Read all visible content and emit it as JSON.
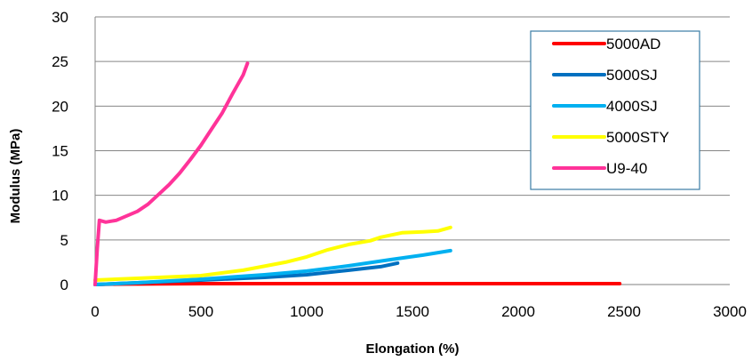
{
  "chart_data": {
    "type": "line",
    "title": "",
    "xlabel": "Elongation (%)",
    "ylabel": "Modulus (MPa)",
    "xlim": [
      0,
      3000
    ],
    "ylim": [
      0,
      30
    ],
    "xticks": [
      0,
      500,
      1000,
      1500,
      2000,
      2500,
      3000
    ],
    "yticks": [
      0,
      5,
      10,
      15,
      20,
      25,
      30
    ],
    "grid": "horizontal",
    "legend_position": "top-right",
    "series": [
      {
        "name": "5000AD",
        "color": "#ff0000",
        "points": [
          [
            0,
            0
          ],
          [
            100,
            0.05
          ],
          [
            500,
            0.1
          ],
          [
            1000,
            0.1
          ],
          [
            1500,
            0.1
          ],
          [
            2000,
            0.1
          ],
          [
            2480,
            0.1
          ]
        ]
      },
      {
        "name": "5000SJ",
        "color": "#0070c0",
        "points": [
          [
            0,
            0
          ],
          [
            200,
            0.2
          ],
          [
            500,
            0.5
          ],
          [
            800,
            0.8
          ],
          [
            1000,
            1.1
          ],
          [
            1200,
            1.6
          ],
          [
            1350,
            2.0
          ],
          [
            1430,
            2.4
          ]
        ]
      },
      {
        "name": "4000SJ",
        "color": "#00b0f0",
        "points": [
          [
            0,
            0
          ],
          [
            200,
            0.2
          ],
          [
            500,
            0.6
          ],
          [
            800,
            1.1
          ],
          [
            1000,
            1.5
          ],
          [
            1200,
            2.1
          ],
          [
            1400,
            2.8
          ],
          [
            1550,
            3.3
          ],
          [
            1680,
            3.8
          ]
        ]
      },
      {
        "name": "5000STY",
        "color": "#ffff00",
        "points": [
          [
            0,
            0.5
          ],
          [
            200,
            0.7
          ],
          [
            500,
            1.0
          ],
          [
            700,
            1.6
          ],
          [
            900,
            2.5
          ],
          [
            1000,
            3.1
          ],
          [
            1100,
            3.9
          ],
          [
            1200,
            4.5
          ],
          [
            1300,
            4.9
          ],
          [
            1350,
            5.3
          ],
          [
            1450,
            5.8
          ],
          [
            1550,
            5.9
          ],
          [
            1620,
            6.0
          ],
          [
            1680,
            6.4
          ]
        ]
      },
      {
        "name": "U9-40",
        "color": "#ff3399",
        "points": [
          [
            0,
            0
          ],
          [
            10,
            4
          ],
          [
            20,
            7.2
          ],
          [
            50,
            7.0
          ],
          [
            100,
            7.2
          ],
          [
            200,
            8.2
          ],
          [
            250,
            9.0
          ],
          [
            300,
            10.1
          ],
          [
            350,
            11.2
          ],
          [
            400,
            12.5
          ],
          [
            450,
            14.0
          ],
          [
            500,
            15.6
          ],
          [
            550,
            17.4
          ],
          [
            600,
            19.2
          ],
          [
            650,
            21.4
          ],
          [
            700,
            23.5
          ],
          [
            720,
            24.8
          ]
        ]
      }
    ]
  }
}
